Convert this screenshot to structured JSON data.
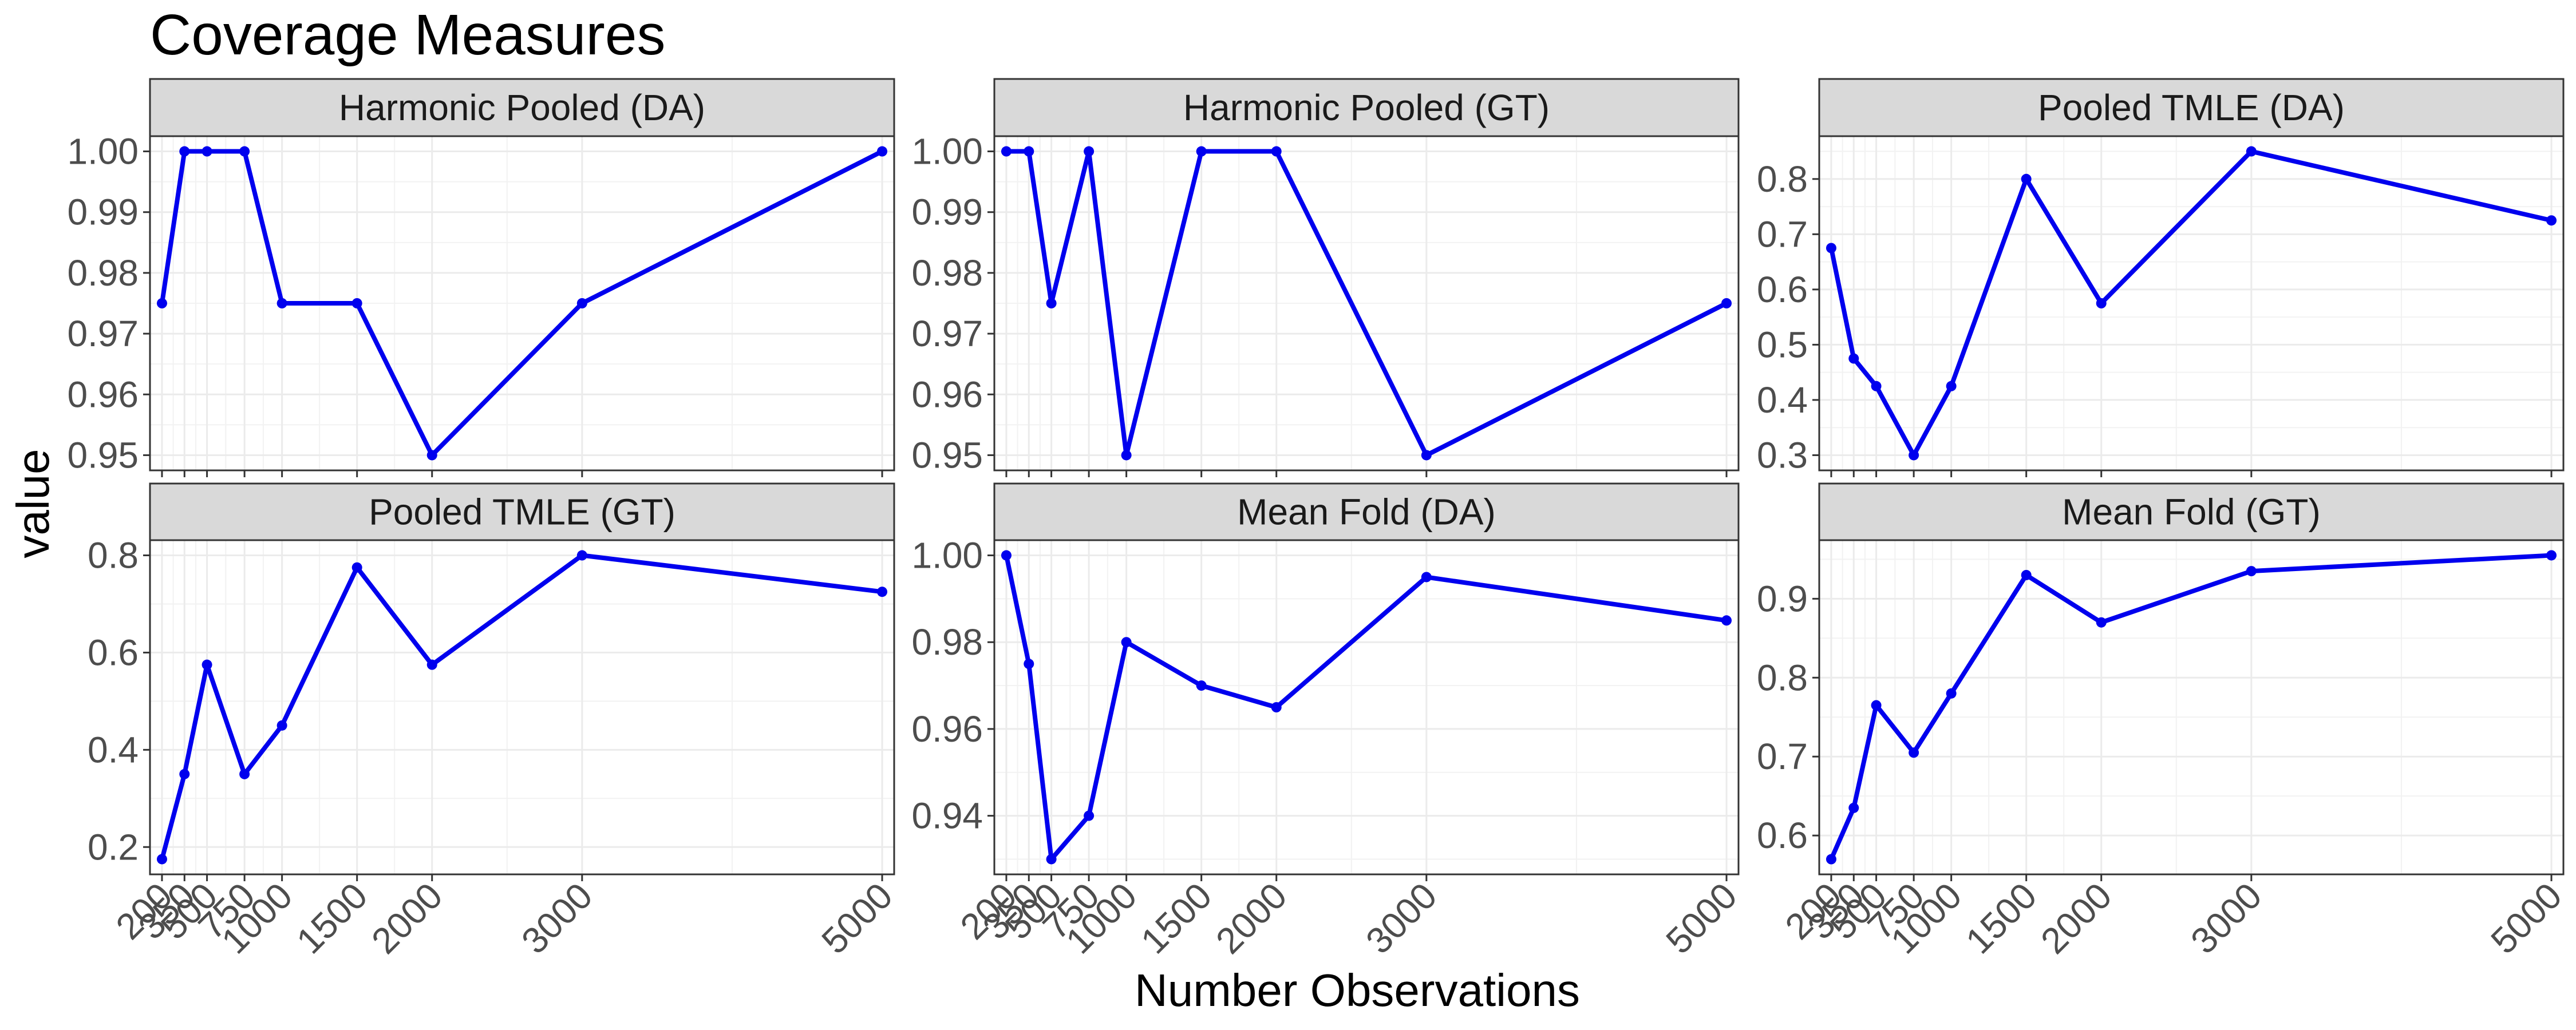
{
  "chart_data": {
    "type": "line",
    "title": "Coverage Measures",
    "xlabel": "Number Observations",
    "ylabel": "value",
    "x": [
      200,
      350,
      500,
      750,
      1000,
      1500,
      2000,
      3000,
      5000
    ],
    "xlim": [
      120,
      5080
    ],
    "grid": true,
    "line_color": "#0000ee",
    "strip_fill": "#d9d9d9",
    "facets": [
      {
        "name": "Harmonic Pooled (DA)",
        "values": [
          0.975,
          1.0,
          1.0,
          1.0,
          0.975,
          0.975,
          0.95,
          0.975,
          1.0
        ],
        "ylim": [
          0.9475,
          1.0025
        ],
        "yticks": [
          0.95,
          0.96,
          0.97,
          0.98,
          0.99,
          1.0
        ],
        "ytick_labels": [
          "0.95",
          "0.96",
          "0.97",
          "0.98",
          "0.99",
          "1.00"
        ]
      },
      {
        "name": "Harmonic Pooled (GT)",
        "values": [
          1.0,
          1.0,
          0.975,
          1.0,
          0.95,
          1.0,
          1.0,
          0.95,
          0.975
        ],
        "ylim": [
          0.9475,
          1.0025
        ],
        "yticks": [
          0.95,
          0.96,
          0.97,
          0.98,
          0.99,
          1.0
        ],
        "ytick_labels": [
          "0.95",
          "0.96",
          "0.97",
          "0.98",
          "0.99",
          "1.00"
        ]
      },
      {
        "name": "Pooled TMLE (DA)",
        "values": [
          0.675,
          0.475,
          0.425,
          0.3,
          0.425,
          0.8,
          0.575,
          0.85,
          0.725
        ],
        "ylim": [
          0.2725,
          0.8775
        ],
        "yticks": [
          0.3,
          0.4,
          0.5,
          0.6,
          0.7,
          0.8
        ],
        "ytick_labels": [
          "0.3",
          "0.4",
          "0.5",
          "0.6",
          "0.7",
          "0.8"
        ]
      },
      {
        "name": "Pooled TMLE (GT)",
        "values": [
          0.175,
          0.35,
          0.575,
          0.35,
          0.45,
          0.775,
          0.575,
          0.8,
          0.725
        ],
        "ylim": [
          0.1438,
          0.8312
        ],
        "yticks": [
          0.2,
          0.4,
          0.6,
          0.8
        ],
        "ytick_labels": [
          "0.2",
          "0.4",
          "0.6",
          "0.8"
        ]
      },
      {
        "name": "Mean Fold (DA)",
        "values": [
          1.0,
          0.975,
          0.93,
          0.94,
          0.98,
          0.97,
          0.965,
          0.995,
          0.985
        ],
        "ylim": [
          0.9265,
          1.0035
        ],
        "yticks": [
          0.94,
          0.96,
          0.98,
          1.0
        ],
        "ytick_labels": [
          "0.94",
          "0.96",
          "0.98",
          "1.00"
        ]
      },
      {
        "name": "Mean Fold (GT)",
        "values": [
          0.57,
          0.635,
          0.765,
          0.705,
          0.78,
          0.93,
          0.87,
          0.935,
          0.955
        ],
        "ylim": [
          0.5508,
          0.9742
        ],
        "yticks": [
          0.6,
          0.7,
          0.8,
          0.9
        ],
        "ytick_labels": [
          "0.6",
          "0.7",
          "0.8",
          "0.9"
        ]
      }
    ]
  }
}
